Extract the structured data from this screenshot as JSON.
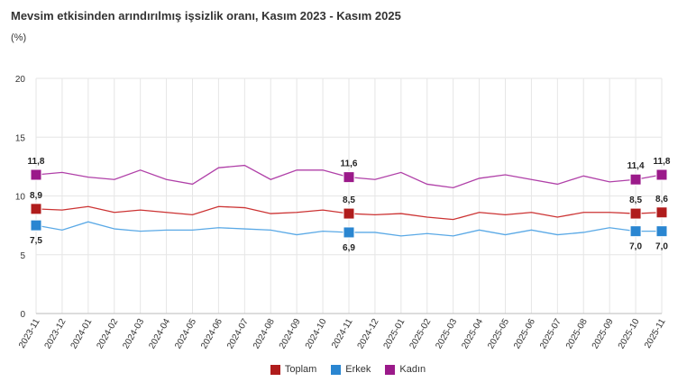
{
  "title": "Mevsim etkisinden arındırılmış işsizlik oranı, Kasım 2023 - Kasım 2025",
  "unit": "(%)",
  "chart_data": {
    "type": "line",
    "title": "Mevsim etkisinden arındırılmış işsizlik oranı, Kasım 2023 - Kasım 2025",
    "ylabel": "(%)",
    "ylim": [
      0,
      20
    ],
    "yticks": [
      "0",
      "5",
      "10",
      "15",
      "20"
    ],
    "grid": true,
    "legend": "bottom",
    "x": [
      "2023-11",
      "2023-12",
      "2024-01",
      "2024-02",
      "2024-03",
      "2024-04",
      "2024-05",
      "2024-06",
      "2024-07",
      "2024-08",
      "2024-09",
      "2024-10",
      "2024-11",
      "2024-12",
      "2025-01",
      "2025-02",
      "2025-03",
      "2025-04",
      "2025-05",
      "2025-06",
      "2025-07",
      "2025-08",
      "2025-09",
      "2025-10",
      "2025-11"
    ],
    "series": [
      {
        "name": "Toplam",
        "color": "#b01c1c",
        "values": [
          8.9,
          8.8,
          9.1,
          8.6,
          8.8,
          8.6,
          8.4,
          9.1,
          9.0,
          8.5,
          8.6,
          8.8,
          8.5,
          8.4,
          8.5,
          8.2,
          8.0,
          8.6,
          8.4,
          8.6,
          8.2,
          8.6,
          8.6,
          8.5,
          8.6
        ]
      },
      {
        "name": "Erkek",
        "color": "#2a86d1",
        "values": [
          7.5,
          7.1,
          7.8,
          7.2,
          7.0,
          7.1,
          7.1,
          7.3,
          7.2,
          7.1,
          6.7,
          7.0,
          6.9,
          6.9,
          6.6,
          6.8,
          6.6,
          7.1,
          6.7,
          7.1,
          6.7,
          6.9,
          7.3,
          7.0,
          7.0
        ]
      },
      {
        "name": "Kadın",
        "color": "#9b1a8a",
        "values": [
          11.8,
          12.0,
          11.6,
          11.4,
          12.2,
          11.4,
          11.0,
          12.4,
          12.6,
          11.4,
          12.2,
          12.2,
          11.6,
          11.4,
          12.0,
          11.0,
          10.7,
          11.5,
          11.8,
          11.4,
          11.0,
          11.7,
          11.2,
          11.4,
          11.8
        ]
      }
    ],
    "marked_points": [
      0,
      12,
      23,
      24
    ],
    "data_labels": {
      "Toplam": [
        "8,9",
        "8,5",
        "8,5",
        "8,6"
      ],
      "Erkek": [
        "7,5",
        "6,9",
        "7,0",
        "7,0"
      ],
      "Kadın": [
        "11,8",
        "11,6",
        "11,4",
        "11,8"
      ]
    }
  }
}
